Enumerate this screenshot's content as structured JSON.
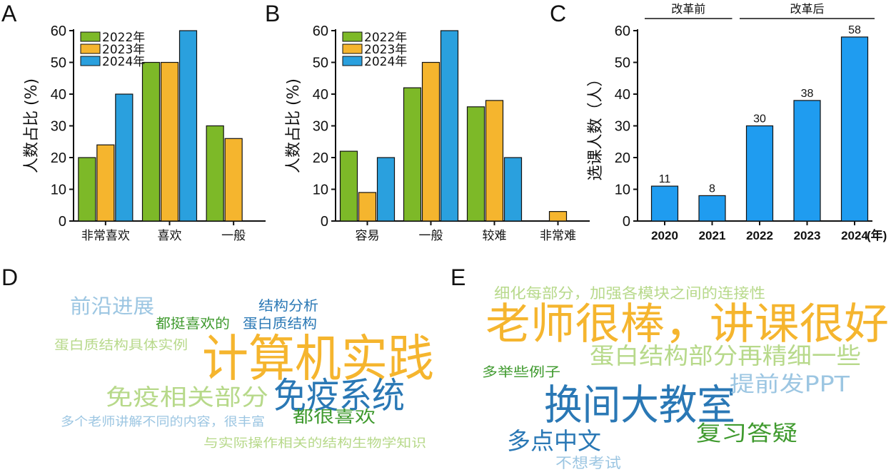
{
  "chart_data": [
    {
      "panel": "A",
      "type": "bar",
      "ylabel": "人数占比 (%)",
      "ylim": [
        0,
        60
      ],
      "yticks": [
        0,
        10,
        20,
        30,
        40,
        50,
        60
      ],
      "categories": [
        "非常喜欢",
        "喜欢",
        "一般"
      ],
      "series": [
        {
          "name": "2022年",
          "color": "#7db928",
          "values": [
            20,
            50,
            30
          ]
        },
        {
          "name": "2023年",
          "color": "#f5b52e",
          "values": [
            24,
            50,
            26
          ]
        },
        {
          "name": "2024年",
          "color": "#2aa0de",
          "values": [
            40,
            60,
            null
          ]
        }
      ],
      "legend": "top-left"
    },
    {
      "panel": "B",
      "type": "bar",
      "ylabel": "人数占比 (%)",
      "ylim": [
        0,
        60
      ],
      "yticks": [
        0,
        10,
        20,
        30,
        40,
        50,
        60
      ],
      "categories": [
        "容易",
        "一般",
        "较难",
        "非常难"
      ],
      "series": [
        {
          "name": "2022年",
          "color": "#7db928",
          "values": [
            22,
            42,
            36,
            null
          ]
        },
        {
          "name": "2023年",
          "color": "#f5b52e",
          "values": [
            9,
            50,
            38,
            3
          ]
        },
        {
          "name": "2024年",
          "color": "#2aa0de",
          "values": [
            20,
            60,
            20,
            null
          ]
        }
      ],
      "legend": "top-left"
    },
    {
      "panel": "C",
      "type": "bar",
      "ylabel": "选课人数（人）",
      "ylim": [
        0,
        60
      ],
      "yticks": [
        0,
        10,
        20,
        30,
        40,
        50,
        60
      ],
      "categories": [
        "2020",
        "2021",
        "2022",
        "2023",
        "2024"
      ],
      "x_unit": "(年)",
      "values": [
        11,
        8,
        30,
        38,
        58
      ],
      "color": "#1f9cf0",
      "eras": [
        {
          "label": "改革前",
          "from": "2020",
          "to": "2021"
        },
        {
          "label": "改革后",
          "from": "2022",
          "to": "2024"
        }
      ]
    },
    {
      "panel": "D",
      "type": "wordcloud",
      "words": [
        {
          "text": "计算机实践",
          "color": "#f5b52e"
        },
        {
          "text": "免疫系统",
          "color": "#2a78b5"
        },
        {
          "text": "免疫相关部分",
          "color": "#b7d98a"
        },
        {
          "text": "前沿进展",
          "color": "#9cc6e2"
        },
        {
          "text": "都挺喜欢的",
          "color": "#3f9a2e"
        },
        {
          "text": "结构分析",
          "color": "#2a78b5"
        },
        {
          "text": "蛋白质结构",
          "color": "#2a78b5"
        },
        {
          "text": "蛋白质结构具体实例",
          "color": "#b7d98a"
        },
        {
          "text": "都很喜欢",
          "color": "#3f9a2e"
        },
        {
          "text": "多个老师讲解不同的内容，很丰富",
          "color": "#9cc6e2"
        },
        {
          "text": "与实际操作相关的结构生物学知识",
          "color": "#b7d98a"
        }
      ]
    },
    {
      "panel": "E",
      "type": "wordcloud",
      "words": [
        {
          "text": "老师很棒，讲课很好",
          "color": "#f5b52e"
        },
        {
          "text": "换间大教室",
          "color": "#2a78b5"
        },
        {
          "text": "蛋白结构部分再精细一些",
          "color": "#b7d98a"
        },
        {
          "text": "细化每部分，加强各模块之间的连接性",
          "color": "#b7d98a"
        },
        {
          "text": "提前发PPT",
          "color": "#9cc6e2"
        },
        {
          "text": "多举些例子",
          "color": "#3f9a2e"
        },
        {
          "text": "复习答疑",
          "color": "#3f9a2e"
        },
        {
          "text": "多点中文",
          "color": "#2a78b5"
        },
        {
          "text": "不想考试",
          "color": "#9cc6e2"
        }
      ]
    }
  ],
  "panels": {
    "A": "A",
    "B": "B",
    "C": "C",
    "D": "D",
    "E": "E"
  }
}
